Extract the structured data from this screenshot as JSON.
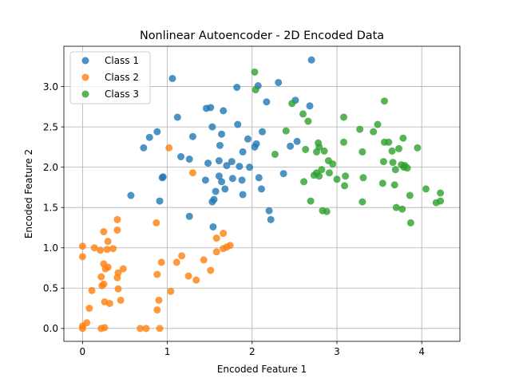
{
  "chart_data": {
    "type": "scatter",
    "title": "Nonlinear Autoencoder - 2D Encoded Data",
    "xlabel": "Encoded Feature 1",
    "ylabel": "Encoded Feature 2",
    "xlim": [
      -0.22,
      4.45
    ],
    "ylim": [
      -0.16,
      3.5
    ],
    "xticks": [
      0,
      1,
      2,
      3,
      4
    ],
    "yticks": [
      0.0,
      0.5,
      1.0,
      1.5,
      2.0,
      2.5,
      3.0
    ],
    "xtick_labels": [
      "0",
      "1",
      "2",
      "3",
      "4"
    ],
    "ytick_labels": [
      "0.0",
      "0.5",
      "1.0",
      "1.5",
      "2.0",
      "2.5",
      "3.0"
    ],
    "grid": true,
    "legend_position": "top-left",
    "series": [
      {
        "name": "Class 1",
        "color": "#1f77b4",
        "points": [
          [
            2.7,
            3.33
          ],
          [
            1.06,
            3.1
          ],
          [
            2.07,
            3.01
          ],
          [
            2.31,
            3.05
          ],
          [
            1.82,
            2.99
          ],
          [
            2.51,
            2.83
          ],
          [
            2.68,
            2.76
          ],
          [
            2.17,
            2.81
          ],
          [
            1.46,
            2.73
          ],
          [
            1.51,
            2.74
          ],
          [
            1.66,
            2.7
          ],
          [
            1.12,
            2.62
          ],
          [
            1.53,
            2.5
          ],
          [
            1.83,
            2.53
          ],
          [
            0.88,
            2.44
          ],
          [
            0.79,
            2.37
          ],
          [
            1.64,
            2.41
          ],
          [
            2.12,
            2.44
          ],
          [
            0.72,
            2.24
          ],
          [
            1.3,
            2.38
          ],
          [
            1.62,
            2.27
          ],
          [
            1.95,
            2.35
          ],
          [
            2.03,
            2.25
          ],
          [
            2.05,
            2.29
          ],
          [
            2.45,
            2.26
          ],
          [
            2.53,
            2.32
          ],
          [
            1.89,
            2.19
          ],
          [
            1.16,
            2.13
          ],
          [
            1.26,
            2.1
          ],
          [
            1.61,
            2.08
          ],
          [
            1.76,
            2.07
          ],
          [
            1.48,
            2.05
          ],
          [
            1.7,
            2.02
          ],
          [
            1.85,
            2.01
          ],
          [
            1.97,
            2.0
          ],
          [
            0.95,
            1.88
          ],
          [
            0.94,
            1.87
          ],
          [
            1.61,
            1.89
          ],
          [
            1.45,
            1.84
          ],
          [
            1.64,
            1.82
          ],
          [
            1.77,
            1.86
          ],
          [
            1.88,
            1.84
          ],
          [
            2.08,
            1.87
          ],
          [
            2.37,
            1.92
          ],
          [
            1.68,
            1.73
          ],
          [
            1.57,
            1.7
          ],
          [
            1.89,
            1.66
          ],
          [
            2.11,
            1.73
          ],
          [
            0.57,
            1.65
          ],
          [
            0.91,
            1.58
          ],
          [
            1.55,
            1.6
          ],
          [
            1.53,
            1.57
          ],
          [
            2.2,
            1.46
          ],
          [
            1.26,
            1.39
          ],
          [
            2.22,
            1.35
          ],
          [
            1.54,
            1.26
          ]
        ]
      },
      {
        "name": "Class 2",
        "color": "#ff7f0e",
        "points": [
          [
            1.02,
            2.24
          ],
          [
            1.3,
            1.93
          ],
          [
            0.41,
            1.35
          ],
          [
            0.87,
            1.31
          ],
          [
            0.41,
            1.22
          ],
          [
            0.25,
            1.2
          ],
          [
            1.66,
            1.18
          ],
          [
            1.58,
            1.12
          ],
          [
            0.3,
            1.08
          ],
          [
            0.0,
            1.02
          ],
          [
            0.14,
            1.0
          ],
          [
            0.21,
            0.97
          ],
          [
            0.29,
            0.98
          ],
          [
            0.36,
            0.99
          ],
          [
            1.74,
            1.03
          ],
          [
            1.7,
            1.01
          ],
          [
            1.66,
            0.99
          ],
          [
            1.58,
            0.95
          ],
          [
            0.0,
            0.89
          ],
          [
            1.17,
            0.9
          ],
          [
            0.93,
            0.82
          ],
          [
            1.11,
            0.82
          ],
          [
            1.43,
            0.85
          ],
          [
            0.25,
            0.8
          ],
          [
            0.3,
            0.76
          ],
          [
            0.27,
            0.74
          ],
          [
            0.48,
            0.74
          ],
          [
            1.51,
            0.72
          ],
          [
            0.42,
            0.69
          ],
          [
            0.22,
            0.64
          ],
          [
            1.25,
            0.65
          ],
          [
            0.41,
            0.63
          ],
          [
            0.88,
            0.67
          ],
          [
            1.34,
            0.6
          ],
          [
            0.23,
            0.53
          ],
          [
            0.25,
            0.55
          ],
          [
            0.42,
            0.49
          ],
          [
            0.11,
            0.47
          ],
          [
            1.04,
            0.46
          ],
          [
            0.45,
            0.35
          ],
          [
            0.9,
            0.35
          ],
          [
            0.26,
            0.33
          ],
          [
            0.32,
            0.31
          ],
          [
            0.08,
            0.25
          ],
          [
            0.88,
            0.23
          ],
          [
            0.05,
            0.07
          ],
          [
            0.0,
            0.03
          ],
          [
            0.0,
            0.0
          ],
          [
            0.22,
            0.0
          ],
          [
            0.26,
            0.01
          ],
          [
            0.68,
            0.0
          ],
          [
            0.75,
            0.0
          ],
          [
            0.91,
            0.0
          ]
        ]
      },
      {
        "name": "Class 3",
        "color": "#2ca02c",
        "points": [
          [
            2.03,
            3.18
          ],
          [
            2.04,
            2.96
          ],
          [
            3.56,
            2.82
          ],
          [
            2.47,
            2.79
          ],
          [
            2.6,
            2.66
          ],
          [
            2.66,
            2.57
          ],
          [
            3.08,
            2.62
          ],
          [
            2.4,
            2.45
          ],
          [
            3.27,
            2.47
          ],
          [
            3.43,
            2.44
          ],
          [
            3.48,
            2.53
          ],
          [
            3.78,
            2.36
          ],
          [
            3.61,
            2.31
          ],
          [
            2.78,
            2.3
          ],
          [
            3.08,
            2.31
          ],
          [
            3.56,
            2.31
          ],
          [
            3.73,
            2.23
          ],
          [
            2.63,
            2.22
          ],
          [
            2.76,
            2.19
          ],
          [
            2.85,
            2.2
          ],
          [
            2.79,
            2.25
          ],
          [
            3.3,
            2.19
          ],
          [
            3.65,
            2.2
          ],
          [
            3.95,
            2.24
          ],
          [
            2.27,
            2.16
          ],
          [
            2.9,
            2.08
          ],
          [
            2.95,
            2.04
          ],
          [
            3.55,
            2.07
          ],
          [
            3.66,
            2.06
          ],
          [
            3.69,
            1.97
          ],
          [
            3.76,
            2.03
          ],
          [
            3.79,
            2.0
          ],
          [
            3.8,
            2.02
          ],
          [
            3.83,
            1.99
          ],
          [
            2.82,
            1.97
          ],
          [
            2.76,
            1.93
          ],
          [
            2.91,
            1.93
          ],
          [
            2.79,
            1.89
          ],
          [
            2.73,
            1.9
          ],
          [
            3.1,
            1.89
          ],
          [
            3.0,
            1.85
          ],
          [
            3.31,
            1.87
          ],
          [
            2.61,
            1.82
          ],
          [
            3.54,
            1.8
          ],
          [
            3.68,
            1.78
          ],
          [
            3.09,
            1.77
          ],
          [
            4.05,
            1.73
          ],
          [
            3.86,
            1.65
          ],
          [
            4.22,
            1.68
          ],
          [
            2.69,
            1.58
          ],
          [
            3.3,
            1.57
          ],
          [
            4.17,
            1.56
          ],
          [
            4.22,
            1.58
          ],
          [
            3.7,
            1.5
          ],
          [
            3.77,
            1.48
          ],
          [
            2.83,
            1.46
          ],
          [
            2.88,
            1.45
          ],
          [
            3.87,
            1.31
          ]
        ]
      }
    ]
  }
}
